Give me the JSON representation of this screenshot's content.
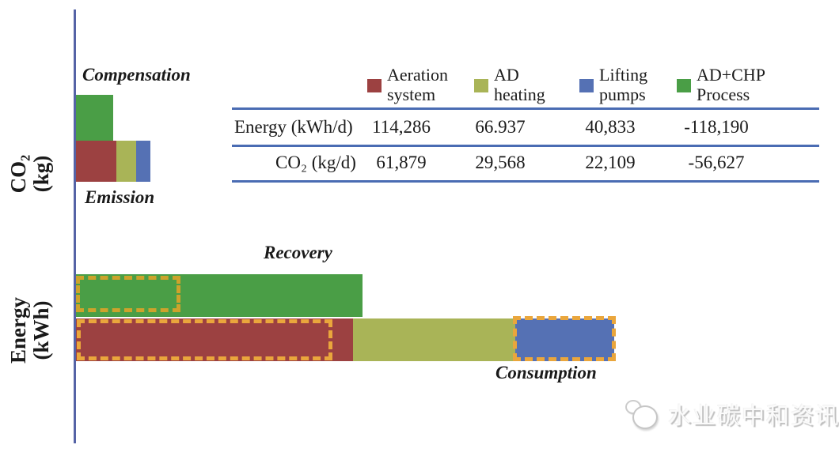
{
  "colors": {
    "aeration_system": "#9c4141",
    "ad_heating": "#a9b457",
    "lifting_pumps": "#5571b4",
    "adchp_process": "#4a9e46",
    "axis_line": "#5563a6",
    "table_rule": "#4a6cb3",
    "dash_highlight_gold": "#eaa63c",
    "dash_highlight_olive": "#cda32b"
  },
  "co2_chart": {
    "axis_label_line1": "CO₂",
    "axis_label_line2": "(kg)",
    "compensation_label": "Compensation",
    "emission_label": "Emission"
  },
  "energy_chart": {
    "axis_label_line1": "Energy",
    "axis_label_line2": "(kWh)",
    "recovery_label": "Recovery",
    "consumption_label": "Consumption"
  },
  "legend": {
    "items": [
      {
        "line1": "Aeration",
        "line2": "system",
        "color": "#9c4141"
      },
      {
        "line1": "AD",
        "line2": "heating",
        "color": "#a9b457"
      },
      {
        "line1": "Lifting",
        "line2": "pumps",
        "color": "#5571b4"
      },
      {
        "line1": "AD+CHP",
        "line2": "Process",
        "color": "#4a9e46"
      }
    ]
  },
  "table": {
    "rows": [
      {
        "label": "Energy (kWh/d)",
        "values": [
          "114,286",
          "66.937",
          "40,833",
          "-118,190"
        ]
      },
      {
        "label": "CO₂ (kg/d)",
        "values": [
          "61,879",
          "29,568",
          "22,109",
          "-56,627"
        ]
      }
    ]
  },
  "watermark": {
    "text": "水业碳中和资讯"
  },
  "chart_data": [
    {
      "type": "bar",
      "orientation": "horizontal",
      "axis_label": "CO₂ (kg)",
      "units": "kg/d",
      "grid": false,
      "legend_position": "table-top-right",
      "bars": [
        {
          "name": "Compensation",
          "segments": [
            {
              "series": "AD+CHP Process",
              "value": 56627
            }
          ]
        },
        {
          "name": "Emission",
          "segments": [
            {
              "series": "Aeration system",
              "value": 61879
            },
            {
              "series": "AD heating",
              "value": 29568
            },
            {
              "series": "Lifting pumps",
              "value": 22109
            }
          ]
        }
      ]
    },
    {
      "type": "bar",
      "orientation": "horizontal",
      "axis_label": "Energy (kWh)",
      "units": "kWh/d",
      "grid": false,
      "highlights": "dashed gold rectangles over parts of Recovery, Aeration and Lifting-pumps bars",
      "bars": [
        {
          "name": "Recovery",
          "segments": [
            {
              "series": "AD+CHP Process",
              "value": 118190
            }
          ]
        },
        {
          "name": "Consumption",
          "segments": [
            {
              "series": "Aeration system",
              "value": 114286
            },
            {
              "series": "AD heating",
              "value": 66937
            },
            {
              "series": "Lifting pumps",
              "value": 40833
            }
          ]
        }
      ]
    }
  ]
}
